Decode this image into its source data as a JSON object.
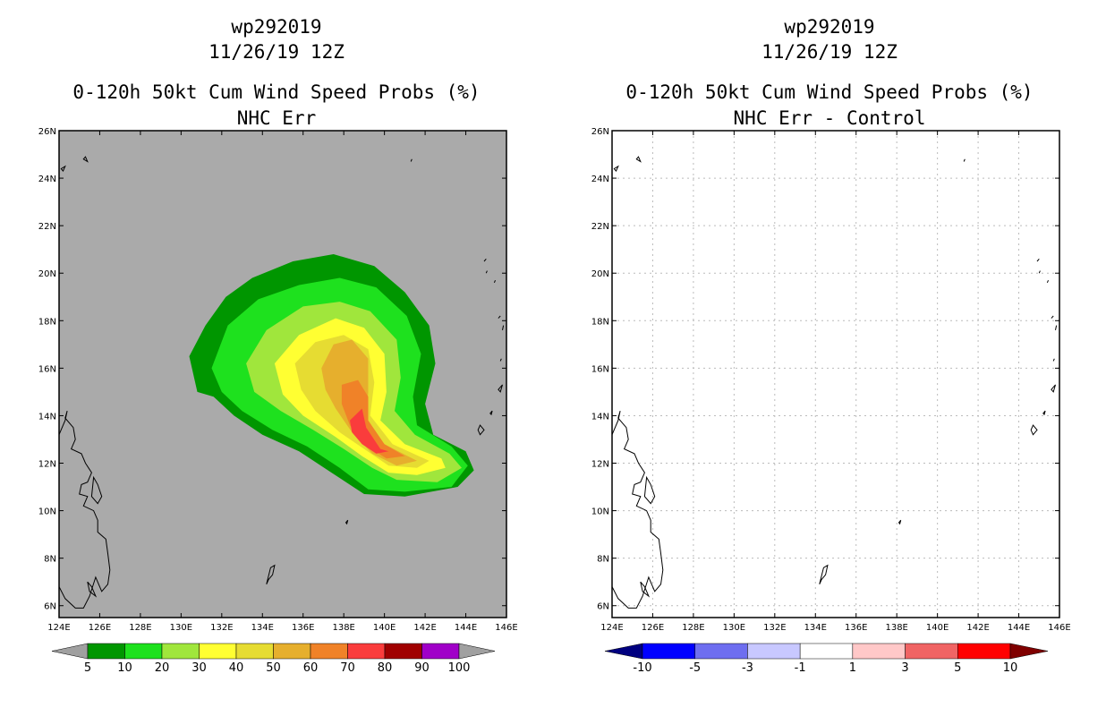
{
  "storm_id": "wp292019",
  "datetime": "11/26/19 12Z",
  "panels": [
    {
      "title_line1": "wp292019",
      "title_line2": "11/26/19 12Z",
      "title_line3": "0-120h 50kt Cum Wind Speed Probs (%)",
      "title_line4": "NHC Err",
      "colorbar_labels": [
        "5",
        "10",
        "20",
        "30",
        "40",
        "50",
        "60",
        "70",
        "80",
        "90",
        "100"
      ],
      "colorbar_colors": [
        "#a0a0a0",
        "#009600",
        "#1ee11e",
        "#a0e63c",
        "#ffff32",
        "#e6dc32",
        "#e6af2d",
        "#f08228",
        "#fa3c3c",
        "#a00000",
        "#a000c8",
        "#a0a0a0"
      ]
    },
    {
      "title_line1": "wp292019",
      "title_line2": "11/26/19 12Z",
      "title_line3": "0-120h 50kt Cum Wind Speed Probs (%)",
      "title_line4": "NHC Err - Control",
      "colorbar_labels": [
        "-10",
        "-5",
        "-3",
        "-1",
        "1",
        "3",
        "5",
        "10"
      ],
      "colorbar_colors": [
        "#000080",
        "#0000ff",
        "#6e6ef0",
        "#c8c8ff",
        "#ffffff",
        "#ffc8c8",
        "#f06464",
        "#ff0000",
        "#800000"
      ]
    }
  ],
  "axes": {
    "lon_labels": [
      "124E",
      "126E",
      "128E",
      "130E",
      "132E",
      "134E",
      "136E",
      "138E",
      "140E",
      "142E",
      "144E",
      "146E"
    ],
    "lat_labels": [
      "6N",
      "8N",
      "10N",
      "12N",
      "14N",
      "16N",
      "18N",
      "20N",
      "22N",
      "24N",
      "26N"
    ]
  },
  "map_data": {
    "lon_range": [
      124,
      146
    ],
    "lat_range": [
      5.5,
      26
    ],
    "map_background_left": "#aaaaaa",
    "contour_levels": [
      5,
      10,
      20,
      30,
      40,
      50,
      60,
      70
    ]
  }
}
